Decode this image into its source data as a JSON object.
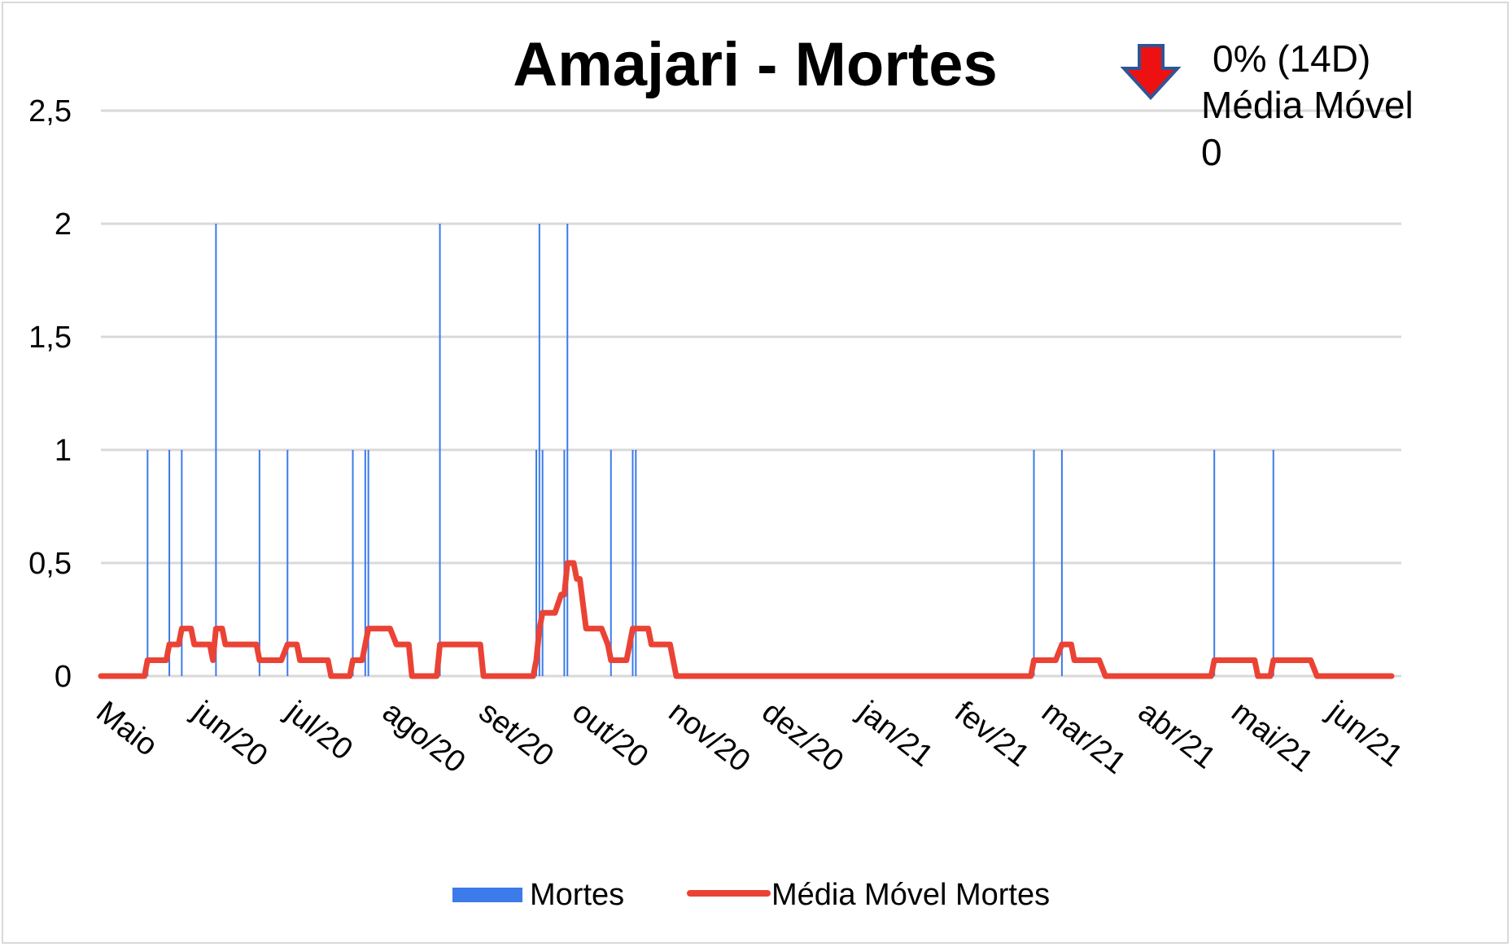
{
  "chart_data": {
    "type": "bar+line",
    "title": "Amajari - Mortes",
    "xlabel": "",
    "ylabel": "",
    "ylim": [
      0,
      2.5
    ],
    "yticks": [
      "0",
      "0,5",
      "1",
      "1,5",
      "2",
      "2,5"
    ],
    "ytick_values": [
      0,
      0.5,
      1,
      1.5,
      2,
      2.5
    ],
    "xlim_days": [
      0,
      415
    ],
    "xticks": [
      "Maio",
      "jun/20",
      "jul/20",
      "ago/20",
      "set/20",
      "out/20",
      "nov/20",
      "dez/20",
      "jan/21",
      "fev/21",
      "mar/21",
      "abr/21",
      "mai/21",
      "jun/21"
    ],
    "xtick_days": [
      0,
      31,
      61,
      92,
      123,
      153,
      184,
      214,
      245,
      276,
      304,
      335,
      365,
      396
    ],
    "grid": true,
    "legend_position": "bottom",
    "series": [
      {
        "name": "Mortes",
        "kind": "bar",
        "color": "#3b7bea",
        "points": [
          {
            "day": 15,
            "value": 1
          },
          {
            "day": 22,
            "value": 1
          },
          {
            "day": 26,
            "value": 1
          },
          {
            "day": 37,
            "value": 2
          },
          {
            "day": 51,
            "value": 1
          },
          {
            "day": 60,
            "value": 1
          },
          {
            "day": 81,
            "value": 1
          },
          {
            "day": 85,
            "value": 1
          },
          {
            "day": 86,
            "value": 1
          },
          {
            "day": 109,
            "value": 2
          },
          {
            "day": 140,
            "value": 1
          },
          {
            "day": 141,
            "value": 2
          },
          {
            "day": 142,
            "value": 1
          },
          {
            "day": 149,
            "value": 1
          },
          {
            "day": 150,
            "value": 2
          },
          {
            "day": 164,
            "value": 1
          },
          {
            "day": 171,
            "value": 1
          },
          {
            "day": 172,
            "value": 1
          },
          {
            "day": 300,
            "value": 1
          },
          {
            "day": 309,
            "value": 1
          },
          {
            "day": 358,
            "value": 1
          },
          {
            "day": 377,
            "value": 1
          }
        ]
      },
      {
        "name": "Média Móvel Mortes",
        "kind": "line",
        "color": "#ea4335",
        "points": [
          [
            0,
            0
          ],
          [
            14,
            0
          ],
          [
            15,
            0.07
          ],
          [
            21,
            0.07
          ],
          [
            22,
            0.14
          ],
          [
            25,
            0.14
          ],
          [
            26,
            0.21
          ],
          [
            29,
            0.21
          ],
          [
            30,
            0.14
          ],
          [
            35,
            0.14
          ],
          [
            36,
            0.07
          ],
          [
            37,
            0.21
          ],
          [
            39,
            0.21
          ],
          [
            40,
            0.14
          ],
          [
            50,
            0.14
          ],
          [
            51,
            0.07
          ],
          [
            58,
            0.07
          ],
          [
            60,
            0.14
          ],
          [
            63,
            0.14
          ],
          [
            64,
            0.07
          ],
          [
            73,
            0.07
          ],
          [
            74,
            0
          ],
          [
            80,
            0
          ],
          [
            81,
            0.07
          ],
          [
            84,
            0.07
          ],
          [
            86,
            0.21
          ],
          [
            93,
            0.21
          ],
          [
            95,
            0.14
          ],
          [
            99,
            0.14
          ],
          [
            100,
            0
          ],
          [
            108,
            0
          ],
          [
            109,
            0.14
          ],
          [
            122,
            0.14
          ],
          [
            123,
            0
          ],
          [
            139,
            0
          ],
          [
            140,
            0.07
          ],
          [
            141,
            0.21
          ],
          [
            142,
            0.28
          ],
          [
            146,
            0.28
          ],
          [
            148,
            0.36
          ],
          [
            149,
            0.36
          ],
          [
            150,
            0.5
          ],
          [
            152,
            0.5
          ],
          [
            153,
            0.43
          ],
          [
            154,
            0.43
          ],
          [
            156,
            0.21
          ],
          [
            161,
            0.21
          ],
          [
            163,
            0.14
          ],
          [
            164,
            0.07
          ],
          [
            169,
            0.07
          ],
          [
            171,
            0.21
          ],
          [
            176,
            0.21
          ],
          [
            177,
            0.14
          ],
          [
            183,
            0.14
          ],
          [
            185,
            0
          ],
          [
            299,
            0
          ],
          [
            300,
            0.07
          ],
          [
            307,
            0.07
          ],
          [
            309,
            0.14
          ],
          [
            312,
            0.14
          ],
          [
            313,
            0.07
          ],
          [
            321,
            0.07
          ],
          [
            323,
            0
          ],
          [
            357,
            0
          ],
          [
            358,
            0.07
          ],
          [
            371,
            0.07
          ],
          [
            372,
            0
          ],
          [
            376,
            0
          ],
          [
            377,
            0.07
          ],
          [
            389,
            0.07
          ],
          [
            391,
            0
          ],
          [
            415,
            0
          ]
        ]
      }
    ]
  },
  "annotation": {
    "arrow_color": "#ee1111",
    "arrow_outline": "#2f5597",
    "line1": "0% (14D)",
    "line2": "Média Móvel",
    "line3": "0"
  },
  "legend": {
    "bar_label": "Mortes",
    "line_label": "Média Móvel Mortes"
  }
}
